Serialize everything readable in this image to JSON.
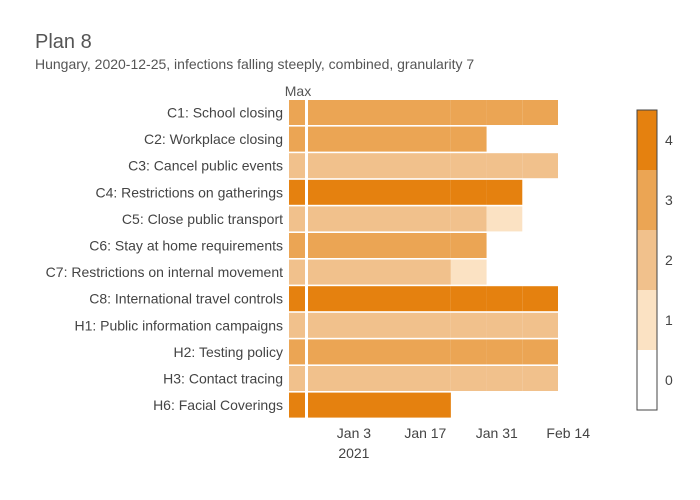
{
  "chart_data": {
    "type": "heatmap",
    "title": "Plan 8",
    "subtitle": "Hungary, 2020-12-25, infections falling steeply, combined, granularity 7",
    "max_label": "Max",
    "rows": [
      "C1: School closing",
      "C2: Workplace closing",
      "C3: Cancel public events",
      "C4: Restrictions on gatherings",
      "C5: Close public transport",
      "C6: Stay at home requirements",
      "C7: Restrictions on internal movement",
      "C8: International travel controls",
      "H1: Public information campaigns",
      "H2: Testing policy",
      "H3: Contact tracing",
      "H6: Facial Coverings"
    ],
    "max_values": [
      3,
      3,
      2,
      4,
      2,
      3,
      2,
      4,
      2,
      3,
      2,
      4
    ],
    "periods": [
      {
        "start": "2020-12-25",
        "end": "2021-01-22",
        "values": [
          3,
          3,
          2,
          4,
          2,
          3,
          2,
          4,
          2,
          3,
          2,
          4
        ]
      },
      {
        "start": "2021-01-22",
        "end": "2021-01-29",
        "values": [
          3,
          3,
          2,
          4,
          2,
          3,
          1,
          4,
          2,
          3,
          2,
          null
        ]
      },
      {
        "start": "2021-01-29",
        "end": "2021-02-05",
        "values": [
          3,
          null,
          2,
          4,
          1,
          null,
          null,
          4,
          2,
          3,
          2,
          null
        ]
      },
      {
        "start": "2021-02-05",
        "end": "2021-02-12",
        "values": [
          3,
          null,
          2,
          null,
          null,
          null,
          null,
          4,
          2,
          3,
          2,
          null
        ]
      }
    ],
    "x_ticks": [
      {
        "date": "2021-01-03",
        "label": "Jan 3",
        "sublabel": "2021"
      },
      {
        "date": "2021-01-17",
        "label": "Jan 17",
        "sublabel": ""
      },
      {
        "date": "2021-01-31",
        "label": "Jan 31",
        "sublabel": ""
      },
      {
        "date": "2021-02-14",
        "label": "Feb 14",
        "sublabel": ""
      }
    ],
    "x_range": [
      "2020-12-25",
      "2021-02-19"
    ],
    "colorscale": {
      "min": 0,
      "max": 4,
      "ticks": [
        0,
        1,
        2,
        3,
        4
      ],
      "colors": [
        "#ffffff",
        "#fbe2c3",
        "#f1c18c",
        "#eba554",
        "#e5810f"
      ]
    },
    "grid": false
  }
}
